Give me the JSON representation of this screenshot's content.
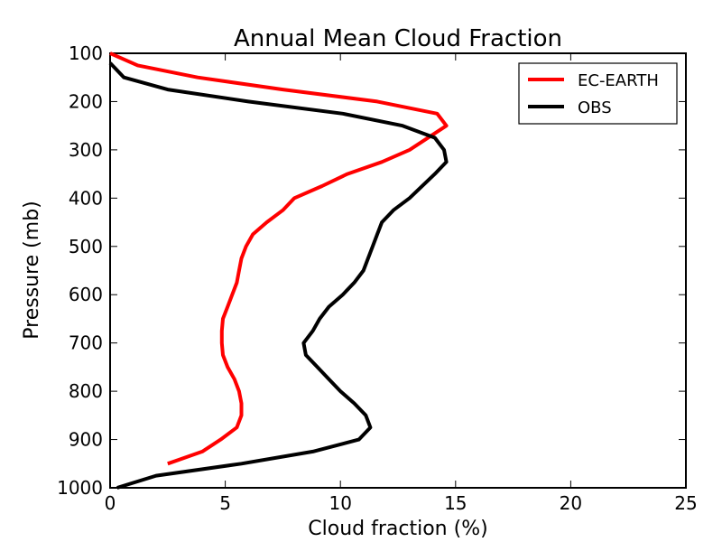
{
  "chart_data": {
    "type": "line",
    "title": "Annual Mean Cloud Fraction",
    "xlabel": "Cloud fraction (%)",
    "ylabel": "Pressure (mb)",
    "xlim": [
      0,
      25
    ],
    "ylim": [
      1000,
      100
    ],
    "y_inverted": true,
    "xticks": [
      0,
      5,
      10,
      15,
      20,
      25
    ],
    "yticks": [
      100,
      200,
      300,
      400,
      500,
      600,
      700,
      800,
      900,
      1000
    ],
    "grid": false,
    "legend_position": "top-right",
    "series": [
      {
        "name": "EC-EARTH",
        "color": "#ff0000",
        "points": [
          [
            0.0,
            100
          ],
          [
            1.2,
            125
          ],
          [
            3.8,
            150
          ],
          [
            7.5,
            175
          ],
          [
            11.6,
            200
          ],
          [
            14.2,
            225
          ],
          [
            14.6,
            250
          ],
          [
            13.0,
            300
          ],
          [
            11.8,
            325
          ],
          [
            10.3,
            350
          ],
          [
            9.2,
            375
          ],
          [
            8.0,
            400
          ],
          [
            7.5,
            425
          ],
          [
            6.8,
            450
          ],
          [
            6.2,
            475
          ],
          [
            5.9,
            500
          ],
          [
            5.7,
            525
          ],
          [
            5.6,
            550
          ],
          [
            5.5,
            575
          ],
          [
            5.3,
            600
          ],
          [
            5.1,
            625
          ],
          [
            4.9,
            650
          ],
          [
            4.85,
            675
          ],
          [
            4.85,
            700
          ],
          [
            4.9,
            725
          ],
          [
            5.1,
            750
          ],
          [
            5.4,
            775
          ],
          [
            5.6,
            800
          ],
          [
            5.7,
            825
          ],
          [
            5.7,
            850
          ],
          [
            5.5,
            875
          ],
          [
            4.8,
            900
          ],
          [
            4.0,
            925
          ],
          [
            2.5,
            950
          ]
        ]
      },
      {
        "name": "OBS",
        "color": "#000000",
        "points": [
          [
            0.0,
            120
          ],
          [
            0.6,
            150
          ],
          [
            2.5,
            175
          ],
          [
            6.0,
            200
          ],
          [
            10.1,
            225
          ],
          [
            12.7,
            250
          ],
          [
            14.1,
            275
          ],
          [
            14.5,
            300
          ],
          [
            14.6,
            325
          ],
          [
            14.1,
            350
          ],
          [
            13.0,
            400
          ],
          [
            12.3,
            425
          ],
          [
            11.8,
            450
          ],
          [
            11.6,
            475
          ],
          [
            11.4,
            500
          ],
          [
            11.2,
            525
          ],
          [
            11.0,
            550
          ],
          [
            10.6,
            575
          ],
          [
            10.1,
            600
          ],
          [
            9.5,
            625
          ],
          [
            9.1,
            650
          ],
          [
            8.8,
            675
          ],
          [
            8.4,
            700
          ],
          [
            8.5,
            725
          ],
          [
            9.0,
            750
          ],
          [
            9.5,
            775
          ],
          [
            10.0,
            800
          ],
          [
            10.6,
            825
          ],
          [
            11.1,
            850
          ],
          [
            11.3,
            875
          ],
          [
            10.8,
            900
          ],
          [
            8.8,
            925
          ],
          [
            5.7,
            950
          ],
          [
            2.0,
            975
          ],
          [
            0.3,
            1000
          ]
        ]
      }
    ]
  }
}
